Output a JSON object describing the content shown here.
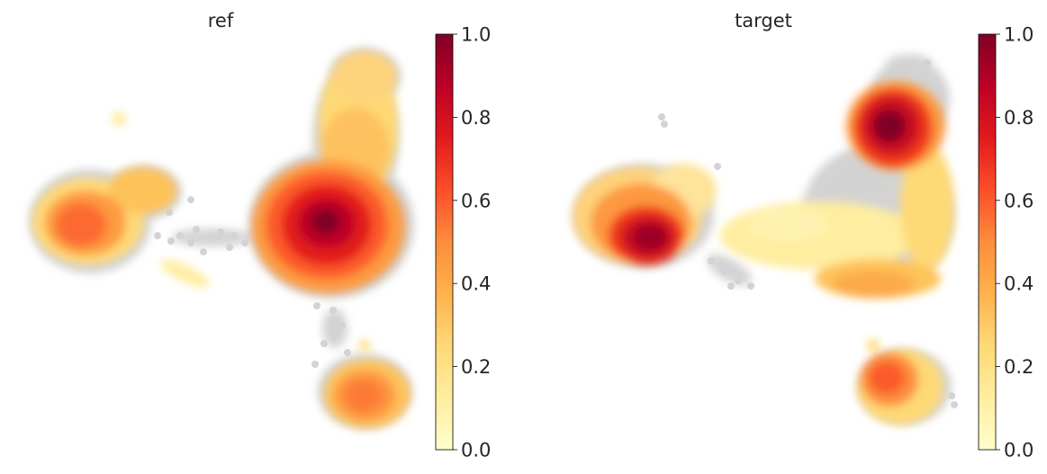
{
  "figure": {
    "panels": [
      {
        "title": "ref"
      },
      {
        "title": "target"
      }
    ]
  },
  "chart_data": [
    {
      "type": "scatter",
      "title": "ref",
      "xlabel": "",
      "ylabel": "",
      "grid": false,
      "axes_visible": false,
      "colormap": "YlOrRd",
      "colorbar": {
        "range": [
          0.0,
          1.0
        ],
        "ticks": [
          "0.0",
          "0.2",
          "0.4",
          "0.6",
          "0.8",
          "1.0"
        ]
      },
      "background_color": "#d3d3d3",
      "density_clusters": [
        {
          "name": "left",
          "peak": 0.62
        },
        {
          "name": "center",
          "peak": 1.0
        },
        {
          "name": "top arm",
          "peak": 0.3
        },
        {
          "name": "bottom",
          "peak": 0.52
        }
      ]
    },
    {
      "type": "scatter",
      "title": "target",
      "xlabel": "",
      "ylabel": "",
      "grid": false,
      "axes_visible": false,
      "colormap": "YlOrRd",
      "colorbar": {
        "range": [
          0.0,
          1.0
        ],
        "ticks": [
          "0.0",
          "0.2",
          "0.4",
          "0.6",
          "0.8",
          "1.0"
        ]
      },
      "background_color": "#d3d3d3",
      "density_clusters": [
        {
          "name": "left",
          "peak": 0.95
        },
        {
          "name": "top",
          "peak": 1.0
        },
        {
          "name": "center band",
          "peak": 0.45
        },
        {
          "name": "bottom",
          "peak": 0.62
        }
      ]
    }
  ]
}
